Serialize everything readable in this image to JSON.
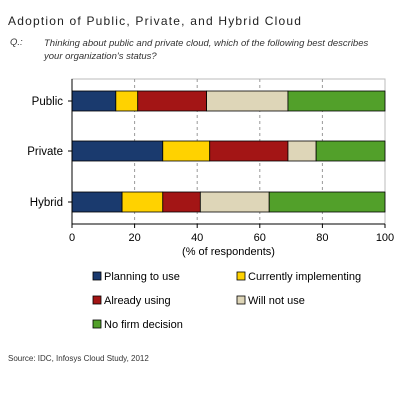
{
  "header": {
    "title": "Adoption of Public, Private, and Hybrid Cloud",
    "question_label": "Q.:",
    "question_text": "Thinking about public and private cloud, which of the following best describes your organization's status?"
  },
  "source": "Source: IDC, Infosys Cloud Study, 2012",
  "chart_data": {
    "type": "bar",
    "orientation": "horizontal",
    "stacked": true,
    "categories": [
      "Public",
      "Private",
      "Hybrid"
    ],
    "series": [
      {
        "name": "Planning to use",
        "color": "#1a3a6e",
        "values": [
          14,
          29,
          16
        ]
      },
      {
        "name": "Currently implementing",
        "color": "#ffd200",
        "values": [
          7,
          15,
          13
        ]
      },
      {
        "name": "Already using",
        "color": "#a31515",
        "values": [
          22,
          25,
          12
        ]
      },
      {
        "name": "Will not use",
        "color": "#ded6b8",
        "values": [
          26,
          9,
          22
        ]
      },
      {
        "name": "No firm decision",
        "color": "#52a02a",
        "values": [
          31,
          22,
          37
        ]
      }
    ],
    "xlabel": "(% of respondents)",
    "ylabel": "",
    "xlim": [
      0,
      100
    ],
    "xticks": [
      "0",
      "20",
      "40",
      "60",
      "80",
      "100"
    ],
    "grid": true,
    "legend_position": "bottom"
  }
}
